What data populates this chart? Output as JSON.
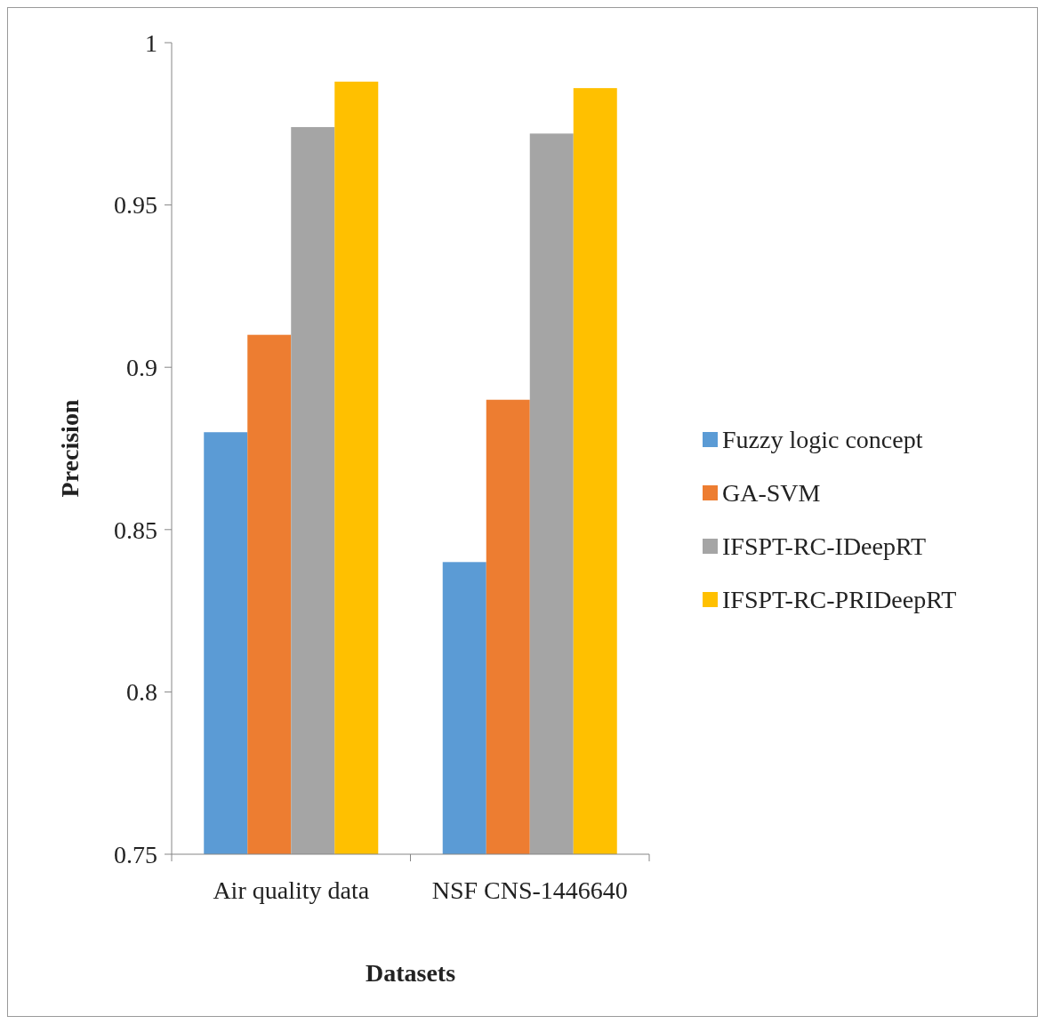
{
  "chart_data": {
    "type": "bar",
    "xlabel": "Datasets",
    "ylabel": "Precision",
    "categories": [
      "Air quality data",
      "NSF CNS-1446640"
    ],
    "series": [
      {
        "name": "Fuzzy logic concept",
        "color": "#5b9bd5",
        "values": [
          0.88,
          0.84
        ]
      },
      {
        "name": "GA-SVM",
        "color": "#ed7d31",
        "values": [
          0.91,
          0.89
        ]
      },
      {
        "name": "IFSPT-RC-IDeepRT",
        "color": "#a5a5a5",
        "values": [
          0.974,
          0.972
        ]
      },
      {
        "name": "IFSPT-RC-PRIDeepRT",
        "color": "#ffc000",
        "values": [
          0.988,
          0.986
        ]
      }
    ],
    "ylim": [
      0.75,
      1
    ],
    "yticks": [
      0.75,
      0.8,
      0.85,
      0.9,
      0.95,
      1
    ],
    "grid": false,
    "legend": "right"
  }
}
